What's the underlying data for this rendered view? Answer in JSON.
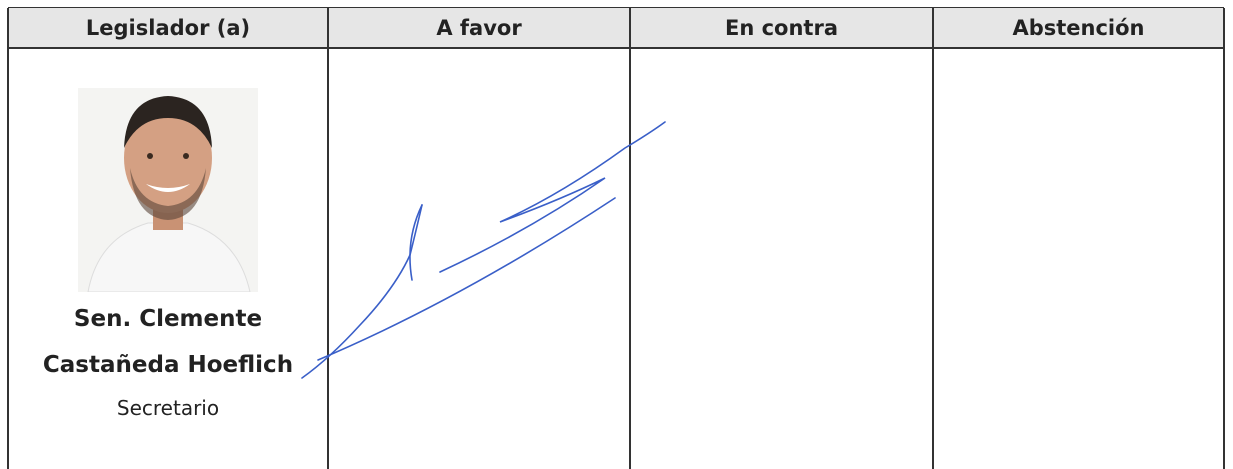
{
  "table": {
    "headers": [
      "Legislador (a)",
      "A favor",
      "En contra",
      "Abstención"
    ],
    "rows": [
      {
        "name": [
          "Sen. Clemente",
          "Castañeda Hoeflich"
        ],
        "role": "Secretario"
      }
    ]
  }
}
